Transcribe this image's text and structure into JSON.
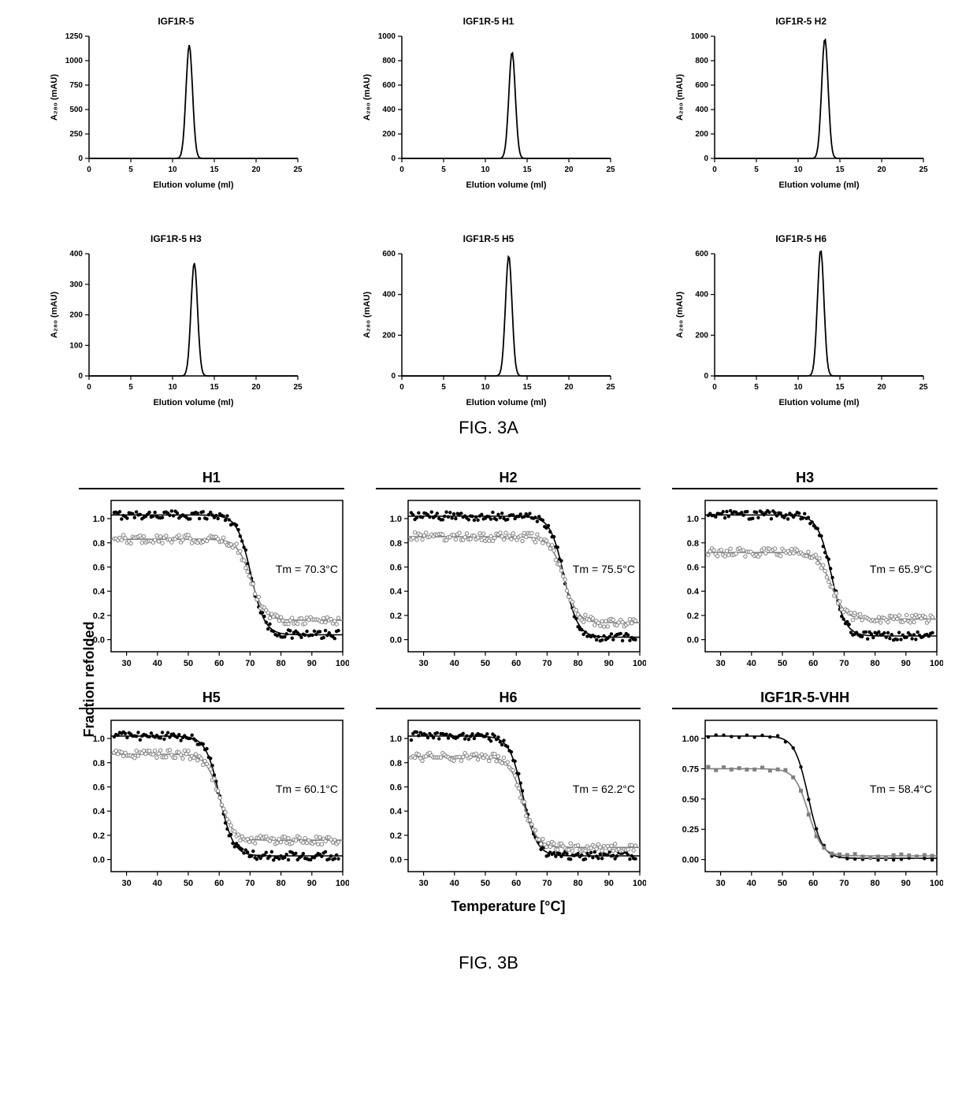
{
  "figA": {
    "label": "FIG. 3A",
    "xlabel": "Elution volume (ml)",
    "ylabel": "A₂₈₀ (mAU)",
    "xlim": [
      0,
      25
    ],
    "xticks": [
      0,
      5,
      10,
      15,
      20,
      25
    ],
    "axis_color": "#000000",
    "line_color": "#000000",
    "line_width": 1.8,
    "label_fontsize": 11,
    "tick_fontsize": 10,
    "title_fontsize": 12,
    "panels": [
      {
        "title": "IGF1R-5",
        "ymax": 1250,
        "yticks": [
          0,
          250,
          500,
          750,
          1000,
          1250
        ],
        "peak_vol": 12.0,
        "peak_height": 1160
      },
      {
        "title": "IGF1R-5  H1",
        "ymax": 1000,
        "yticks": [
          0,
          200,
          400,
          600,
          800,
          1000
        ],
        "peak_vol": 13.2,
        "peak_height": 870
      },
      {
        "title": "IGF1R-5  H2",
        "ymax": 1000,
        "yticks": [
          0,
          200,
          400,
          600,
          800,
          1000
        ],
        "peak_vol": 13.2,
        "peak_height": 980
      },
      {
        "title": "IGF1R-5  H3",
        "ymax": 400,
        "yticks": [
          0,
          100,
          200,
          300,
          400
        ],
        "peak_vol": 12.6,
        "peak_height": 370
      },
      {
        "title": "IGF1R-5  H5",
        "ymax": 600,
        "yticks": [
          0,
          200,
          400,
          600
        ],
        "peak_vol": 12.8,
        "peak_height": 590
      },
      {
        "title": "IGF1R-5  H6",
        "ymax": 600,
        "yticks": [
          0,
          200,
          400,
          600
        ],
        "peak_vol": 12.7,
        "peak_height": 620
      }
    ]
  },
  "figB": {
    "label": "FIG. 3B",
    "xlabel": "Temperature [°C]",
    "ylabel": "Fraction refolded",
    "xlim": [
      25,
      100
    ],
    "xticks": [
      30,
      40,
      50,
      60,
      70,
      80,
      90,
      100
    ],
    "ylim": [
      -0.1,
      1.15
    ],
    "yticks": [
      0.0,
      0.2,
      0.4,
      0.6,
      0.8,
      1.0
    ],
    "axis_color": "#000000",
    "tick_fontsize": 11,
    "title_fontsize": 18,
    "tm_label_fontsize": 14,
    "curve1_color": "#000000",
    "curve2_color": "#808080",
    "marker_size": 2.2,
    "line_width": 1.6,
    "panels": [
      {
        "title": "H1",
        "tm_text": "Tm = 70.3°C",
        "midpoint": 70.3,
        "top1": 1.03,
        "top2": 0.83,
        "bottom1": 0.04,
        "bottom2": 0.16
      },
      {
        "title": "H2",
        "tm_text": "Tm = 75.5°C",
        "midpoint": 75.5,
        "top1": 1.02,
        "top2": 0.85,
        "bottom1": 0.02,
        "bottom2": 0.14
      },
      {
        "title": "H3",
        "tm_text": "Tm = 65.9°C",
        "midpoint": 65.9,
        "top1": 1.03,
        "top2": 0.72,
        "bottom1": 0.03,
        "bottom2": 0.17
      },
      {
        "title": "H5",
        "tm_text": "Tm = 60.1°C",
        "midpoint": 60.1,
        "top1": 1.02,
        "top2": 0.87,
        "bottom1": 0.03,
        "bottom2": 0.16
      },
      {
        "title": "H6",
        "tm_text": "Tm = 62.2°C",
        "midpoint": 62.2,
        "top1": 1.02,
        "top2": 0.85,
        "bottom1": 0.03,
        "bottom2": 0.1
      },
      {
        "title": "IGF1R-5-VHH",
        "tm_text": "Tm = 58.4°C",
        "midpoint": 58.4,
        "top1": 1.02,
        "top2": 0.75,
        "bottom1": 0.01,
        "bottom2": 0.03,
        "sparse": true,
        "yticks": [
          0.0,
          0.25,
          0.5,
          0.75,
          1.0
        ]
      }
    ]
  }
}
